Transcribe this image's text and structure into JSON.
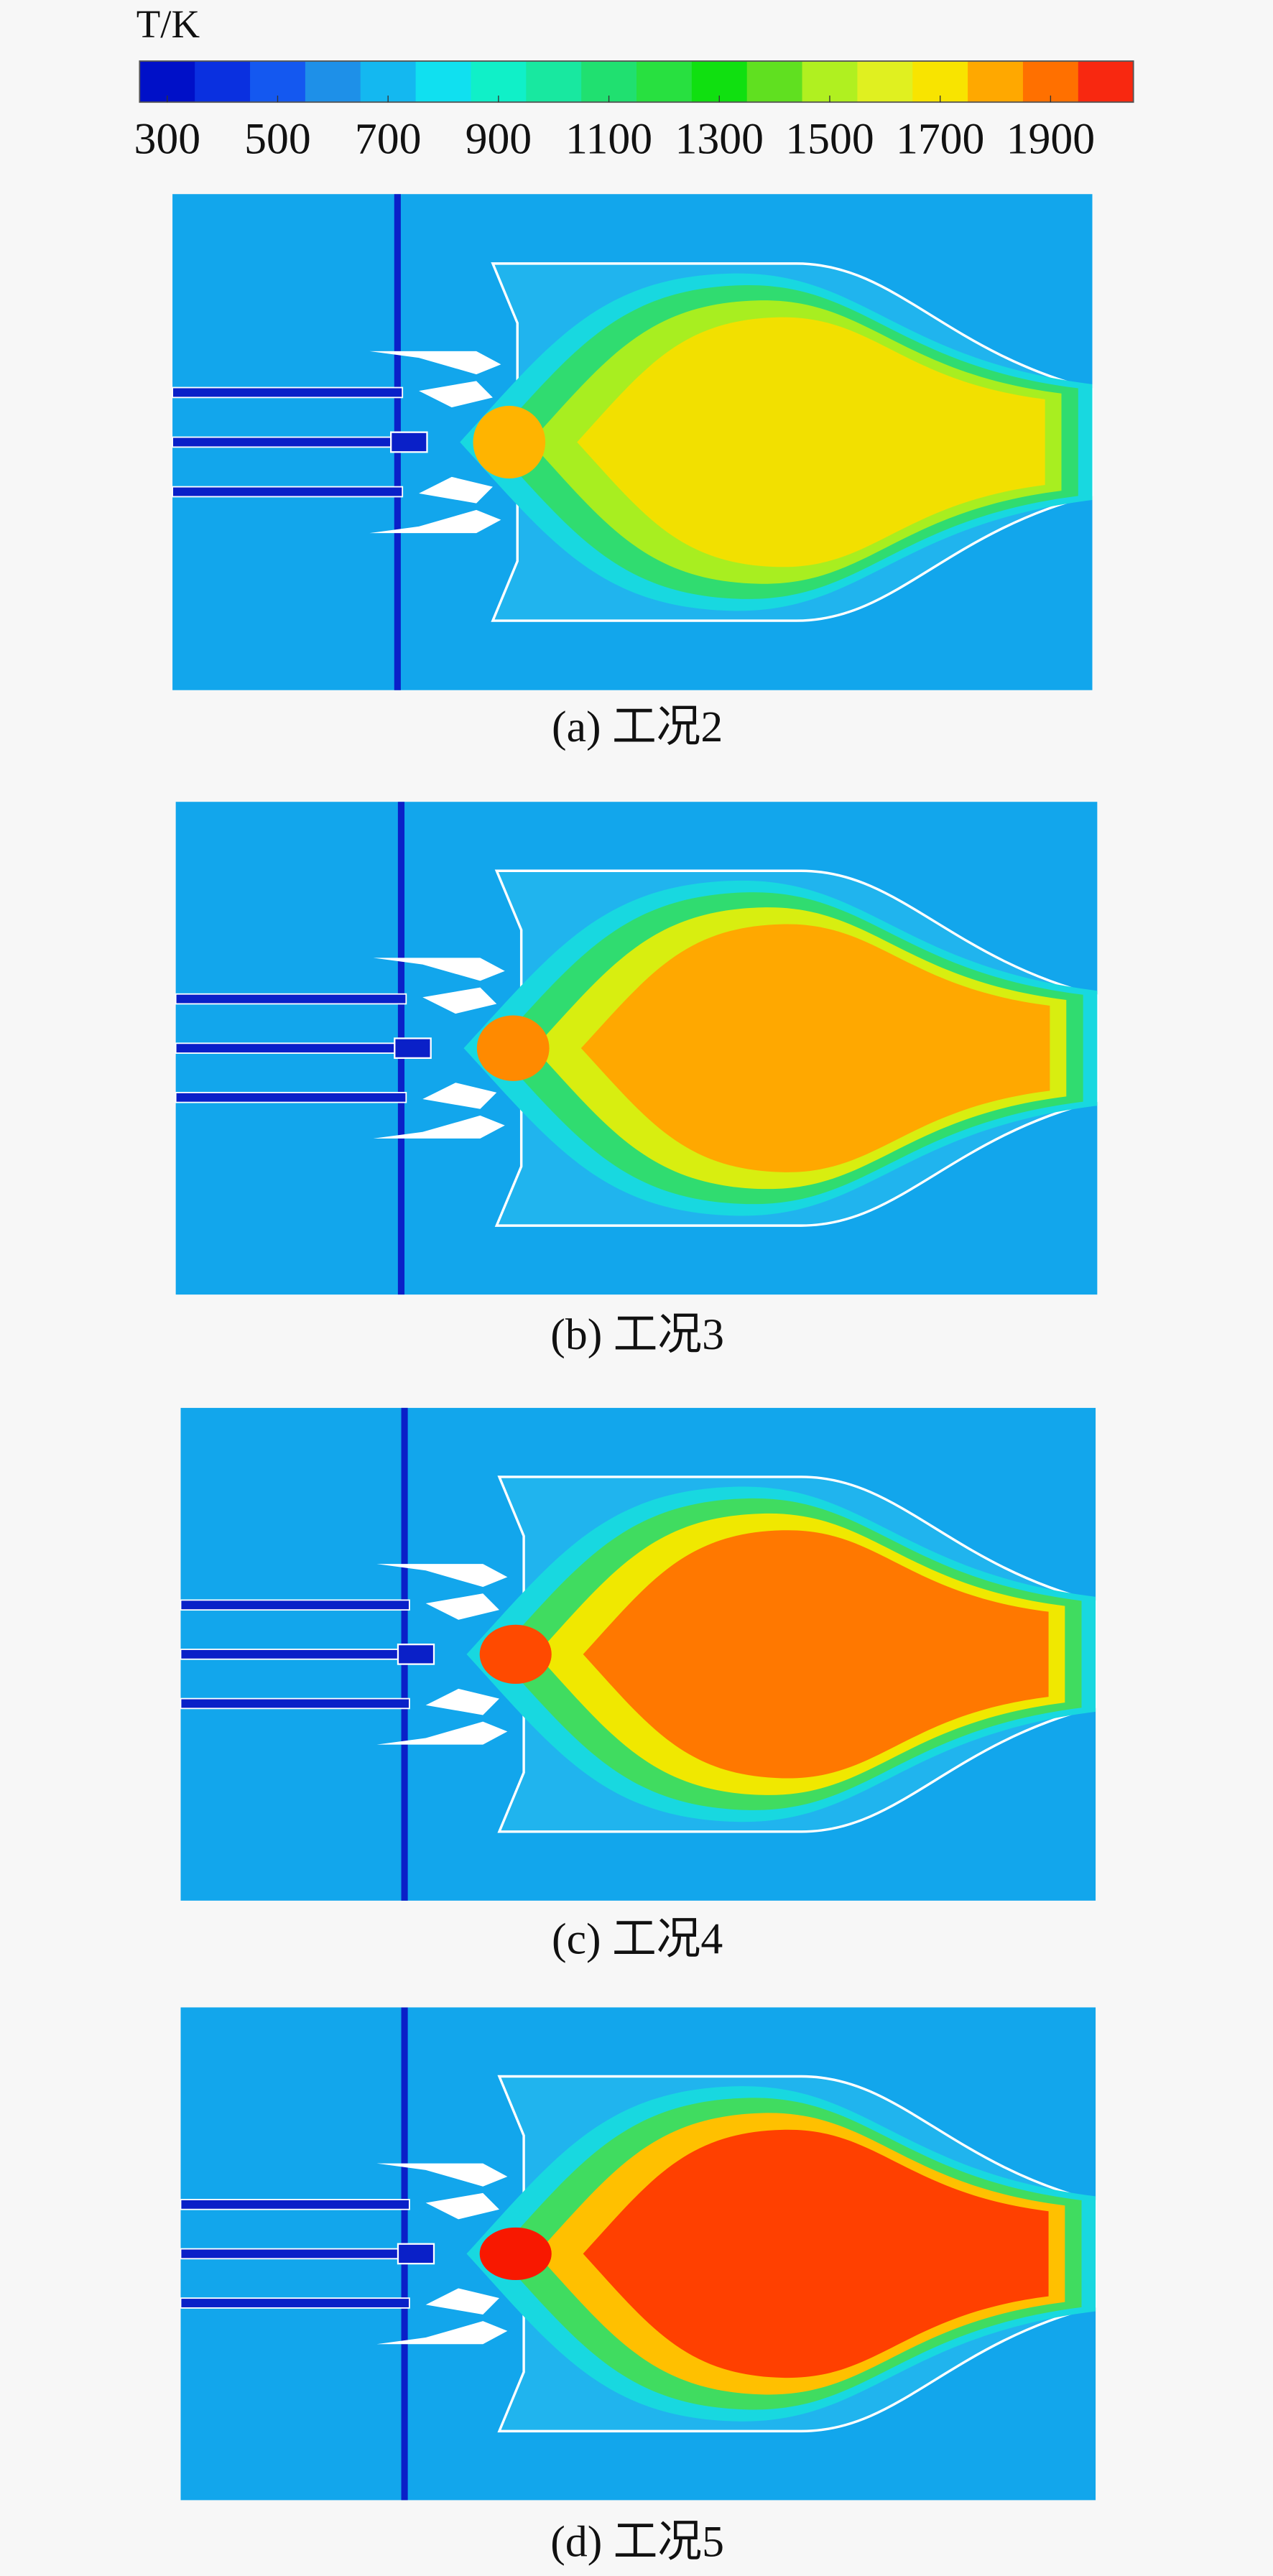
{
  "colorbar": {
    "label": "T/K",
    "lim": [
      250,
      2050
    ],
    "ticks": [
      300,
      500,
      700,
      900,
      1100,
      1300,
      1500,
      1700,
      1900
    ],
    "colors": [
      "#0010c8",
      "#0a30e0",
      "#1458f0",
      "#1e90e8",
      "#14b8f0",
      "#10e0f0",
      "#10f0c8",
      "#18e8a0",
      "#20e070",
      "#28e040",
      "#10e010",
      "#60e020",
      "#b0f020",
      "#e0f020",
      "#f8e400",
      "#ffa800",
      "#ff7000",
      "#f82810"
    ]
  },
  "panels": [
    {
      "caption": "(a) 工况2"
    },
    {
      "caption": "(b) 工况3"
    },
    {
      "caption": "(c) 工况4"
    },
    {
      "caption": "(d) 工况5"
    }
  ]
}
